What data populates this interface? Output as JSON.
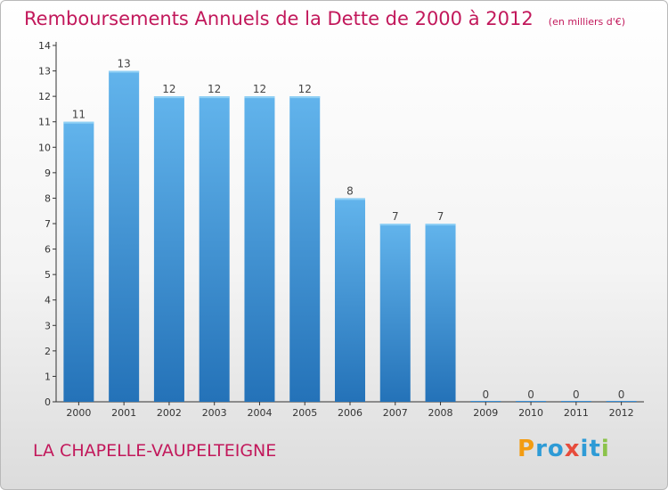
{
  "chart_data": {
    "type": "bar",
    "title": "Remboursements Annuels de la Dette de 2000 à 2012",
    "unit_note": "(en milliers d'€)",
    "categories": [
      "2000",
      "2001",
      "2002",
      "2003",
      "2004",
      "2005",
      "2006",
      "2007",
      "2008",
      "2009",
      "2010",
      "2011",
      "2012"
    ],
    "values": [
      11,
      13,
      12,
      12,
      12,
      12,
      8,
      7,
      7,
      0,
      0,
      0,
      0
    ],
    "data_labels": [
      "11",
      "13",
      "12",
      "12",
      "12",
      "12",
      "8",
      "7",
      "7",
      "0",
      "0",
      "0",
      "0"
    ],
    "yticks": [
      "0",
      "1",
      "2",
      "3",
      "4",
      "5",
      "6",
      "7",
      "8",
      "9",
      "10",
      "11",
      "12",
      "13",
      "14"
    ],
    "ylim": [
      0,
      14
    ],
    "grid": false,
    "bar_color": "#3a8fd6",
    "bar_color_light": "#62b4ec",
    "bar_color_dark": "#2472b8"
  },
  "commune": "LA CHAPELLE-VAUPELTEIGNE",
  "logo": {
    "text": "Proxiti",
    "letters": [
      "P",
      "r",
      "o",
      "x",
      "i",
      "t",
      "i"
    ],
    "colors": [
      "#f39c12",
      "#2e9bd6",
      "#2e9bd6",
      "#e74c3c",
      "#2e9bd6",
      "#2e9bd6",
      "#8bc34a"
    ]
  },
  "colors": {
    "title": "#c2185b",
    "axis": "#333333"
  }
}
